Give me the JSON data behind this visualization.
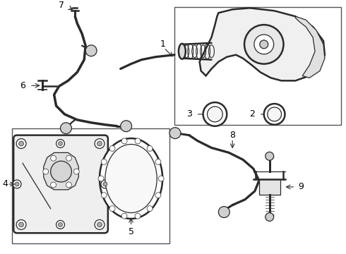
{
  "bg_color": "#ffffff",
  "line_color": "#2a2a2a",
  "box_color": "#555555",
  "fig_width": 4.9,
  "fig_height": 3.6,
  "dpi": 100
}
